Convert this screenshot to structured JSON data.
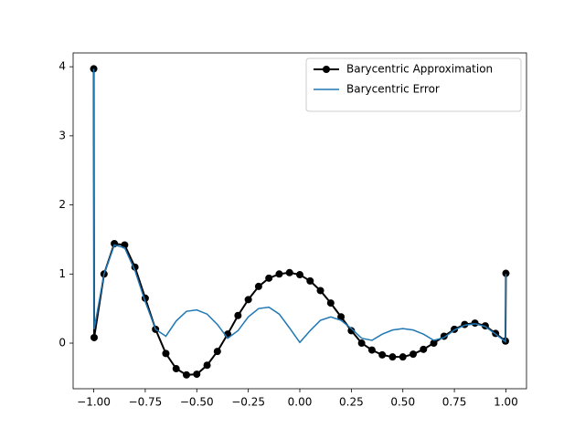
{
  "chart_data": {
    "type": "line",
    "x": [
      -1,
      -0.998,
      -0.95,
      -0.9,
      -0.85,
      -0.8,
      -0.75,
      -0.7,
      -0.65,
      -0.6,
      -0.55,
      -0.5,
      -0.45,
      -0.4,
      -0.35,
      -0.3,
      -0.25,
      -0.2,
      -0.15,
      -0.1,
      -0.05,
      0,
      0.05,
      0.1,
      0.15,
      0.2,
      0.25,
      0.3,
      0.35,
      0.4,
      0.45,
      0.5,
      0.55,
      0.6,
      0.65,
      0.7,
      0.75,
      0.8,
      0.85,
      0.9,
      0.95,
      0.998,
      1
    ],
    "series": [
      {
        "name": "Barycentric Approximation",
        "color": "#000000",
        "marker": true,
        "values": [
          3.97,
          0.08,
          1.0,
          1.44,
          1.42,
          1.1,
          0.65,
          0.2,
          -0.15,
          -0.37,
          -0.46,
          -0.45,
          -0.32,
          -0.12,
          0.13,
          0.4,
          0.63,
          0.82,
          0.94,
          1.0,
          1.02,
          0.99,
          0.9,
          0.76,
          0.58,
          0.38,
          0.18,
          0.0,
          -0.1,
          -0.17,
          -0.2,
          -0.2,
          -0.16,
          -0.09,
          0.0,
          0.1,
          0.2,
          0.27,
          0.29,
          0.25,
          0.14,
          0.03,
          1.01
        ]
      },
      {
        "name": "Barycentric Error",
        "color": "#1f77b4",
        "marker": false,
        "values": [
          3.97,
          0.2,
          1.0,
          1.42,
          1.38,
          1.05,
          0.6,
          0.2,
          0.1,
          0.32,
          0.46,
          0.48,
          0.42,
          0.27,
          0.07,
          0.18,
          0.38,
          0.5,
          0.52,
          0.42,
          0.22,
          0.01,
          0.18,
          0.33,
          0.38,
          0.33,
          0.21,
          0.07,
          0.04,
          0.13,
          0.19,
          0.21,
          0.19,
          0.13,
          0.04,
          0.08,
          0.19,
          0.26,
          0.28,
          0.24,
          0.13,
          0.02,
          1.0
        ]
      }
    ],
    "xlim": [
      -1.1,
      1.1
    ],
    "ylim": [
      -0.66,
      4.2
    ],
    "xticks": [
      {
        "value": -1,
        "label": "−1.00"
      },
      {
        "value": -0.75,
        "label": "−0.75"
      },
      {
        "value": -0.5,
        "label": "−0.50"
      },
      {
        "value": -0.25,
        "label": "−0.25"
      },
      {
        "value": 0,
        "label": "0.00"
      },
      0.25,
      {
        "value": 0.5,
        "label": "0.50"
      },
      0.75,
      {
        "value": 1,
        "label": "1.00"
      }
    ],
    "yticks": [
      0,
      1,
      2,
      3,
      4
    ],
    "legend": "upper right"
  }
}
